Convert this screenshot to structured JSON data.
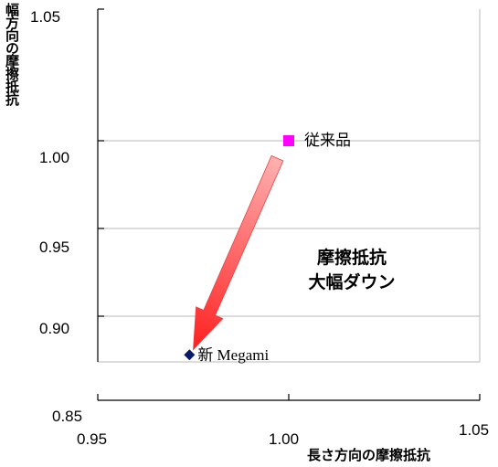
{
  "chart_data": {
    "type": "scatter",
    "xlabel": "長さ方向の摩擦抵抗",
    "ylabel": "幅方向の摩擦抵抗",
    "xlim": [
      0.95,
      1.05
    ],
    "ylim": [
      0.85,
      1.05
    ],
    "x_ticks": [
      "0.95",
      "1.00",
      "1.05"
    ],
    "y_ticks": [
      "0.85",
      "0.90",
      "0.95",
      "1.00",
      "1.05"
    ],
    "grid": true,
    "points": [
      {
        "label": "従来品",
        "x": 1.0,
        "y": 1.0,
        "marker": "square",
        "color": "#ff00ff"
      },
      {
        "label": "新 Megami",
        "x": 0.974,
        "y": 0.878,
        "marker": "diamond",
        "color": "#0a1a6a"
      }
    ],
    "arrow": {
      "from": [
        0.997,
        0.99
      ],
      "to": [
        0.975,
        0.881
      ],
      "color": "#ff3333"
    },
    "annotation_lines": [
      "摩擦抵抗",
      "大幅ダウン"
    ]
  }
}
